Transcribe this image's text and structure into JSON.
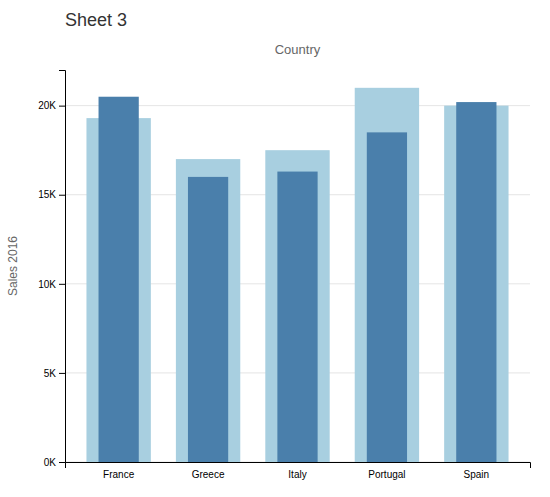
{
  "chart_data": {
    "type": "bar",
    "title": "Sheet 3",
    "subtitle": "Country",
    "y_label": "Sales 2016",
    "categories": [
      "France",
      "Greece",
      "Italy",
      "Portugal",
      "Spain"
    ],
    "series": [
      {
        "color": "#a8cfe0",
        "values": [
          19300,
          17000,
          17500,
          21000,
          20000
        ]
      },
      {
        "color": "#4a7fab",
        "values": [
          20500,
          16000,
          16300,
          18500,
          20200
        ]
      }
    ],
    "ylim": [
      0,
      22000
    ],
    "yticks": [
      {
        "value": 0,
        "label": "0K"
      },
      {
        "value": 5000,
        "label": "5K"
      },
      {
        "value": 10000,
        "label": "10K"
      },
      {
        "value": 15000,
        "label": "15K"
      },
      {
        "value": 20000,
        "label": "20K"
      }
    ],
    "grid": true
  }
}
